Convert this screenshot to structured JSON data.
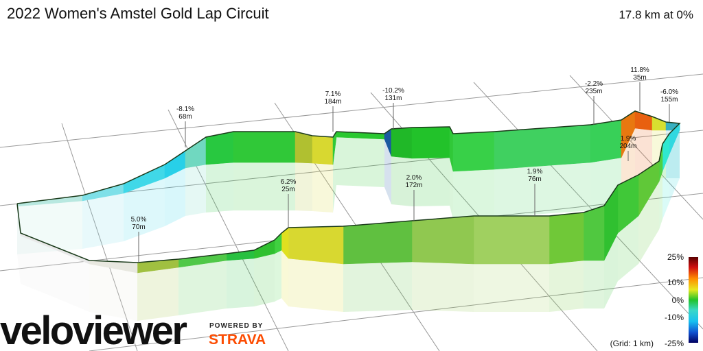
{
  "header": {
    "title": "2022 Women's Amstel Gold Lap Circuit",
    "summary": "17.8 km at 0%"
  },
  "annotations": [
    {
      "grade": "-8.1%",
      "length": "68m"
    },
    {
      "grade": "7.1%",
      "length": "184m"
    },
    {
      "grade": "-10.2%",
      "length": "131m"
    },
    {
      "grade": "-2.2%",
      "length": "235m"
    },
    {
      "grade": "11.8%",
      "length": "35m"
    },
    {
      "grade": "-6.0%",
      "length": "155m"
    },
    {
      "grade": "1.9%",
      "length": "204m"
    },
    {
      "grade": "6.2%",
      "length": "25m"
    },
    {
      "grade": "2.0%",
      "length": "172m"
    },
    {
      "grade": "1.9%",
      "length": "76m"
    },
    {
      "grade": "5.0%",
      "length": "70m"
    }
  ],
  "legend": {
    "labels": [
      "25%",
      "10%",
      "0%",
      "-10%",
      "-25%"
    ],
    "grid": "(Grid: 1 km)"
  },
  "branding": {
    "logo": "veloviewer",
    "powered": "POWERED BY",
    "strava": "STRAVA"
  }
}
